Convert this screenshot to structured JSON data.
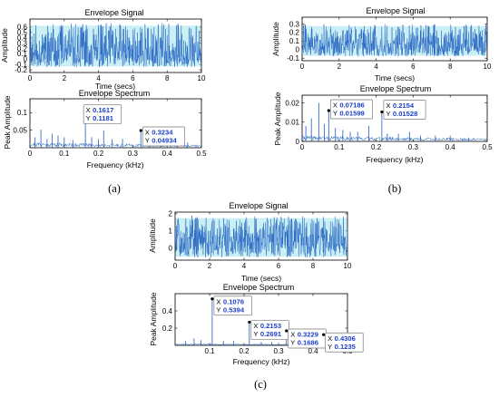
{
  "chart_data": [
    {
      "panel": "(a)",
      "charts": [
        {
          "type": "line",
          "title": "Envelope Signal",
          "xlabel": "Time (secs)",
          "ylabel": "Amplitude",
          "xlim": [
            0,
            10
          ],
          "ylim": [
            -0.25,
            0.75
          ],
          "xticks": [
            0,
            2,
            4,
            6,
            8,
            10
          ],
          "yticks": [
            -0.2,
            -0.1,
            0,
            0.1,
            0.2,
            0.3,
            0.4,
            0.5,
            0.6
          ],
          "xtick_labels": [
            "0",
            "2",
            "4",
            "6",
            "8",
            "10"
          ],
          "ytick_labels": [
            "-0.2",
            "-0.1",
            "0",
            "0.1",
            "0.2",
            "0.3",
            "0.4",
            "0.5",
            "0.6"
          ],
          "signal": {
            "mean": 0.12,
            "low": -0.15,
            "high": 0.68
          },
          "grid": false
        },
        {
          "type": "line",
          "title": "Envelope Spectrum",
          "xlabel": "Frequency (kHz)",
          "ylabel": "Peak Amplitude",
          "xlim": [
            0,
            0.5
          ],
          "ylim": [
            0,
            0.14
          ],
          "xticks": [
            0,
            0.1,
            0.2,
            0.3,
            0.4,
            0.5
          ],
          "yticks": [
            0.05,
            0.1
          ],
          "xtick_labels": [
            "0",
            "0.1",
            "0.2",
            "0.3",
            "0.4",
            "0.5"
          ],
          "ytick_labels": [
            "0.05",
            "0.1"
          ],
          "baseline": 0.008,
          "peaks": [
            {
              "x": 0.015,
              "y": 0.03
            },
            {
              "x": 0.032,
              "y": 0.052
            },
            {
              "x": 0.05,
              "y": 0.025
            },
            {
              "x": 0.065,
              "y": 0.04
            },
            {
              "x": 0.082,
              "y": 0.035
            },
            {
              "x": 0.1,
              "y": 0.03
            },
            {
              "x": 0.125,
              "y": 0.022
            },
            {
              "x": 0.1617,
              "y": 0.1181
            },
            {
              "x": 0.18,
              "y": 0.03
            },
            {
              "x": 0.2,
              "y": 0.025
            },
            {
              "x": 0.215,
              "y": 0.05
            },
            {
              "x": 0.24,
              "y": 0.025
            },
            {
              "x": 0.27,
              "y": 0.025
            },
            {
              "x": 0.3234,
              "y": 0.04934
            },
            {
              "x": 0.36,
              "y": 0.02
            },
            {
              "x": 0.38,
              "y": 0.025
            },
            {
              "x": 0.41,
              "y": 0.02
            },
            {
              "x": 0.43,
              "y": 0.025
            },
            {
              "x": 0.46,
              "y": 0.015
            }
          ],
          "datatips": [
            {
              "x": 0.1617,
              "y": 0.1181,
              "x_label": "0.1617",
              "y_label": "0.1181"
            },
            {
              "x": 0.3234,
              "y": 0.04934,
              "x_label": "0.3234",
              "y_label": "0.04934"
            }
          ],
          "grid": false
        }
      ]
    },
    {
      "panel": "(b)",
      "charts": [
        {
          "type": "line",
          "title": "Envelope Signal",
          "xlabel": "Time (secs)",
          "ylabel": "Amplitude",
          "xlim": [
            0,
            10
          ],
          "ylim": [
            -0.13,
            0.38
          ],
          "xticks": [
            0,
            2,
            4,
            6,
            8,
            10
          ],
          "yticks": [
            -0.1,
            0,
            0.1,
            0.2,
            0.3
          ],
          "xtick_labels": [
            "0",
            "2",
            "4",
            "6",
            "8",
            "10"
          ],
          "ytick_labels": [
            "-0.1",
            "0",
            "0.1",
            "0.2",
            "0.3"
          ],
          "signal": {
            "mean": 0.05,
            "low": -0.08,
            "high": 0.3
          },
          "grid": false
        },
        {
          "type": "line",
          "title": "Envelope Spectrum",
          "xlabel": "Frequency (kHz)",
          "ylabel": "Peak Amplitude",
          "xlim": [
            0,
            0.5
          ],
          "ylim": [
            0,
            0.024
          ],
          "xticks": [
            0,
            0.1,
            0.2,
            0.3,
            0.4,
            0.5
          ],
          "yticks": [
            0,
            0.01,
            0.02
          ],
          "xtick_labels": [
            "0",
            "0.1",
            "0.2",
            "0.3",
            "0.4",
            "0.5"
          ],
          "ytick_labels": [
            "0",
            "0.01",
            "0.02"
          ],
          "baseline": 0.0015,
          "peaks": [
            {
              "x": 0.01,
              "y": 0.008
            },
            {
              "x": 0.025,
              "y": 0.012
            },
            {
              "x": 0.045,
              "y": 0.02
            },
            {
              "x": 0.06,
              "y": 0.009
            },
            {
              "x": 0.07186,
              "y": 0.01599
            },
            {
              "x": 0.09,
              "y": 0.007
            },
            {
              "x": 0.11,
              "y": 0.006
            },
            {
              "x": 0.13,
              "y": 0.005
            },
            {
              "x": 0.15,
              "y": 0.005
            },
            {
              "x": 0.18,
              "y": 0.008
            },
            {
              "x": 0.2154,
              "y": 0.01528
            },
            {
              "x": 0.23,
              "y": 0.004
            },
            {
              "x": 0.26,
              "y": 0.004
            },
            {
              "x": 0.29,
              "y": 0.005
            },
            {
              "x": 0.32,
              "y": 0.003
            },
            {
              "x": 0.36,
              "y": 0.003
            },
            {
              "x": 0.4,
              "y": 0.003
            },
            {
              "x": 0.45,
              "y": 0.002
            }
          ],
          "datatips": [
            {
              "x": 0.07186,
              "y": 0.01599,
              "x_label": "0.07186",
              "y_label": "0.01599"
            },
            {
              "x": 0.2154,
              "y": 0.01528,
              "x_label": "0.2154",
              "y_label": "0.01528"
            }
          ],
          "grid": false
        }
      ]
    },
    {
      "panel": "(c)",
      "charts": [
        {
          "type": "line",
          "title": "Envelope Signal",
          "xlabel": "Time (secs)",
          "ylabel": "Amplitude",
          "xlim": [
            0,
            10
          ],
          "ylim": [
            -0.7,
            2.1
          ],
          "xticks": [
            0,
            2,
            4,
            6,
            8,
            10
          ],
          "yticks": [
            0,
            1,
            2
          ],
          "xtick_labels": [
            "0",
            "2",
            "4",
            "6",
            "8",
            "10"
          ],
          "ytick_labels": [
            "0",
            "1",
            "2"
          ],
          "signal": {
            "mean": 0.55,
            "low": -0.55,
            "high": 1.9
          },
          "grid": false
        },
        {
          "type": "line",
          "title": "Envelope Spectrum",
          "xlabel": "Frequency (kHz)",
          "ylabel": "Peak Amplitude",
          "xlim": [
            0,
            0.5
          ],
          "ylim": [
            0,
            0.6
          ],
          "xticks": [
            0.1,
            0.2,
            0.3,
            0.4,
            0.5
          ],
          "yticks": [
            0.2,
            0.4
          ],
          "xtick_labels": [
            "0.1",
            "0.2",
            "0.3",
            "0.4",
            "0.5"
          ],
          "ytick_labels": [
            "0.2",
            "0.4"
          ],
          "baseline": 0.01,
          "peaks": [
            {
              "x": 0.03,
              "y": 0.05
            },
            {
              "x": 0.055,
              "y": 0.08
            },
            {
              "x": 0.075,
              "y": 0.06
            },
            {
              "x": 0.1076,
              "y": 0.5394
            },
            {
              "x": 0.14,
              "y": 0.05
            },
            {
              "x": 0.17,
              "y": 0.05
            },
            {
              "x": 0.2153,
              "y": 0.2691
            },
            {
              "x": 0.25,
              "y": 0.04
            },
            {
              "x": 0.28,
              "y": 0.04
            },
            {
              "x": 0.3229,
              "y": 0.1686
            },
            {
              "x": 0.36,
              "y": 0.03
            },
            {
              "x": 0.39,
              "y": 0.03
            },
            {
              "x": 0.4306,
              "y": 0.1235
            },
            {
              "x": 0.46,
              "y": 0.02
            }
          ],
          "datatips": [
            {
              "x": 0.1076,
              "y": 0.5394,
              "x_label": "0.1076",
              "y_label": "0.5394"
            },
            {
              "x": 0.2153,
              "y": 0.2691,
              "x_label": "0.2153",
              "y_label": "0.2691"
            },
            {
              "x": 0.3229,
              "y": 0.1686,
              "x_label": "0.3229",
              "y_label": "0.1686"
            },
            {
              "x": 0.4306,
              "y": 0.1235,
              "x_label": "0.4306",
              "y_label": "0.1235"
            }
          ],
          "grid": false
        }
      ]
    }
  ],
  "datatip_keys": {
    "x": "X",
    "y": "Y"
  },
  "colors": {
    "signal_line": "#1f5fbf",
    "signal_band": "#9fe3ec",
    "spectrum_line": "#1f5fbf",
    "datatip_text": "#1a3fc9",
    "marker": "#000000"
  }
}
